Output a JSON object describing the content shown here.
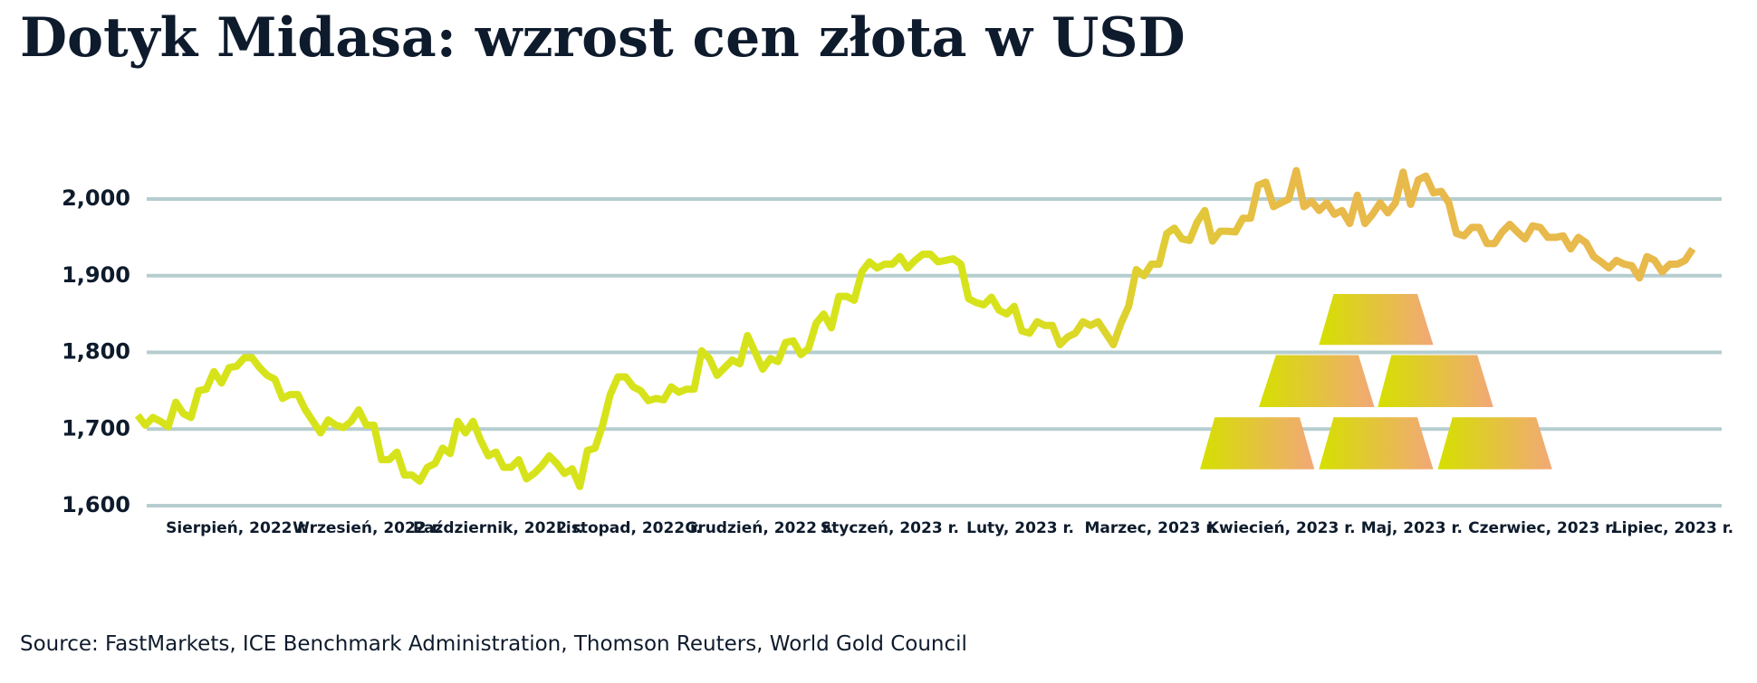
{
  "chart_data": {
    "type": "line",
    "title": "Dotyk Midasa: wzrost cen złota w USD",
    "source": "Source: FastMarkets, ICE Benchmark Administration, Thomson Reuters, World Gold Council",
    "x_labels": [
      "Sierpień, 2022 r.",
      "Wrzesień, 2022 r.",
      "Październik, 2022 r.",
      "Listopad, 2022 r.",
      "Grudzień, 2022 r.",
      "Styczeń, 2023 r.",
      "Luty, 2023 r.",
      "Marzec, 2023 r.",
      "Kwiecień, 2023 r.",
      "Maj, 2023 r.",
      "Czerwiec, 2023 r.",
      "Lipiec, 2023 r."
    ],
    "values": [
      1718,
      1705,
      1715,
      1710,
      1703,
      1735,
      1720,
      1715,
      1750,
      1752,
      1775,
      1760,
      1780,
      1782,
      1793,
      1793,
      1780,
      1770,
      1765,
      1740,
      1745,
      1745,
      1725,
      1710,
      1695,
      1712,
      1705,
      1702,
      1710,
      1725,
      1705,
      1705,
      1660,
      1660,
      1670,
      1640,
      1640,
      1632,
      1650,
      1655,
      1675,
      1668,
      1710,
      1695,
      1710,
      1685,
      1665,
      1670,
      1650,
      1650,
      1660,
      1635,
      1642,
      1652,
      1665,
      1655,
      1642,
      1648,
      1625,
      1672,
      1675,
      1705,
      1745,
      1768,
      1768,
      1755,
      1750,
      1737,
      1740,
      1738,
      1755,
      1748,
      1752,
      1752,
      1802,
      1792,
      1770,
      1780,
      1790,
      1785,
      1822,
      1800,
      1778,
      1792,
      1788,
      1813,
      1815,
      1797,
      1805,
      1838,
      1850,
      1832,
      1873,
      1873,
      1868,
      1905,
      1918,
      1910,
      1915,
      1915,
      1925,
      1910,
      1920,
      1928,
      1928,
      1918,
      1920,
      1922,
      1915,
      1870,
      1865,
      1862,
      1872,
      1855,
      1850,
      1860,
      1828,
      1825,
      1840,
      1835,
      1835,
      1810,
      1820,
      1825,
      1840,
      1835,
      1840,
      1825,
      1810,
      1838,
      1860,
      1908,
      1900,
      1915,
      1915,
      1955,
      1962,
      1948,
      1946,
      1970,
      1985,
      1945,
      1958,
      1958,
      1957,
      1975,
      1975,
      2018,
      2022,
      1990,
      1995,
      2000,
      2037,
      1990,
      1997,
      1985,
      1995,
      1980,
      1985,
      1968,
      2005,
      1968,
      1980,
      1995,
      1982,
      1995,
      2035,
      1993,
      2025,
      2030,
      2008,
      2010,
      1995,
      1955,
      1952,
      1963,
      1963,
      1942,
      1942,
      1957,
      1967,
      1957,
      1948,
      1965,
      1963,
      1950,
      1950,
      1952,
      1935,
      1950,
      1943,
      1925,
      1918,
      1910,
      1920,
      1915,
      1913,
      1897,
      1925,
      1920,
      1905,
      1915,
      1915,
      1920,
      1935
    ],
    "colors": [
      "#d7e31a",
      "#e8b94b"
    ],
    "ylim": [
      1600,
      2000
    ],
    "yticks": [
      {
        "value": 1600,
        "label": "1,600"
      },
      {
        "value": 1700,
        "label": "1,700"
      },
      {
        "value": 1800,
        "label": "1,800"
      },
      {
        "value": 1900,
        "label": "1,900"
      },
      {
        "value": 2000,
        "label": "2,000"
      }
    ],
    "grid": true
  }
}
